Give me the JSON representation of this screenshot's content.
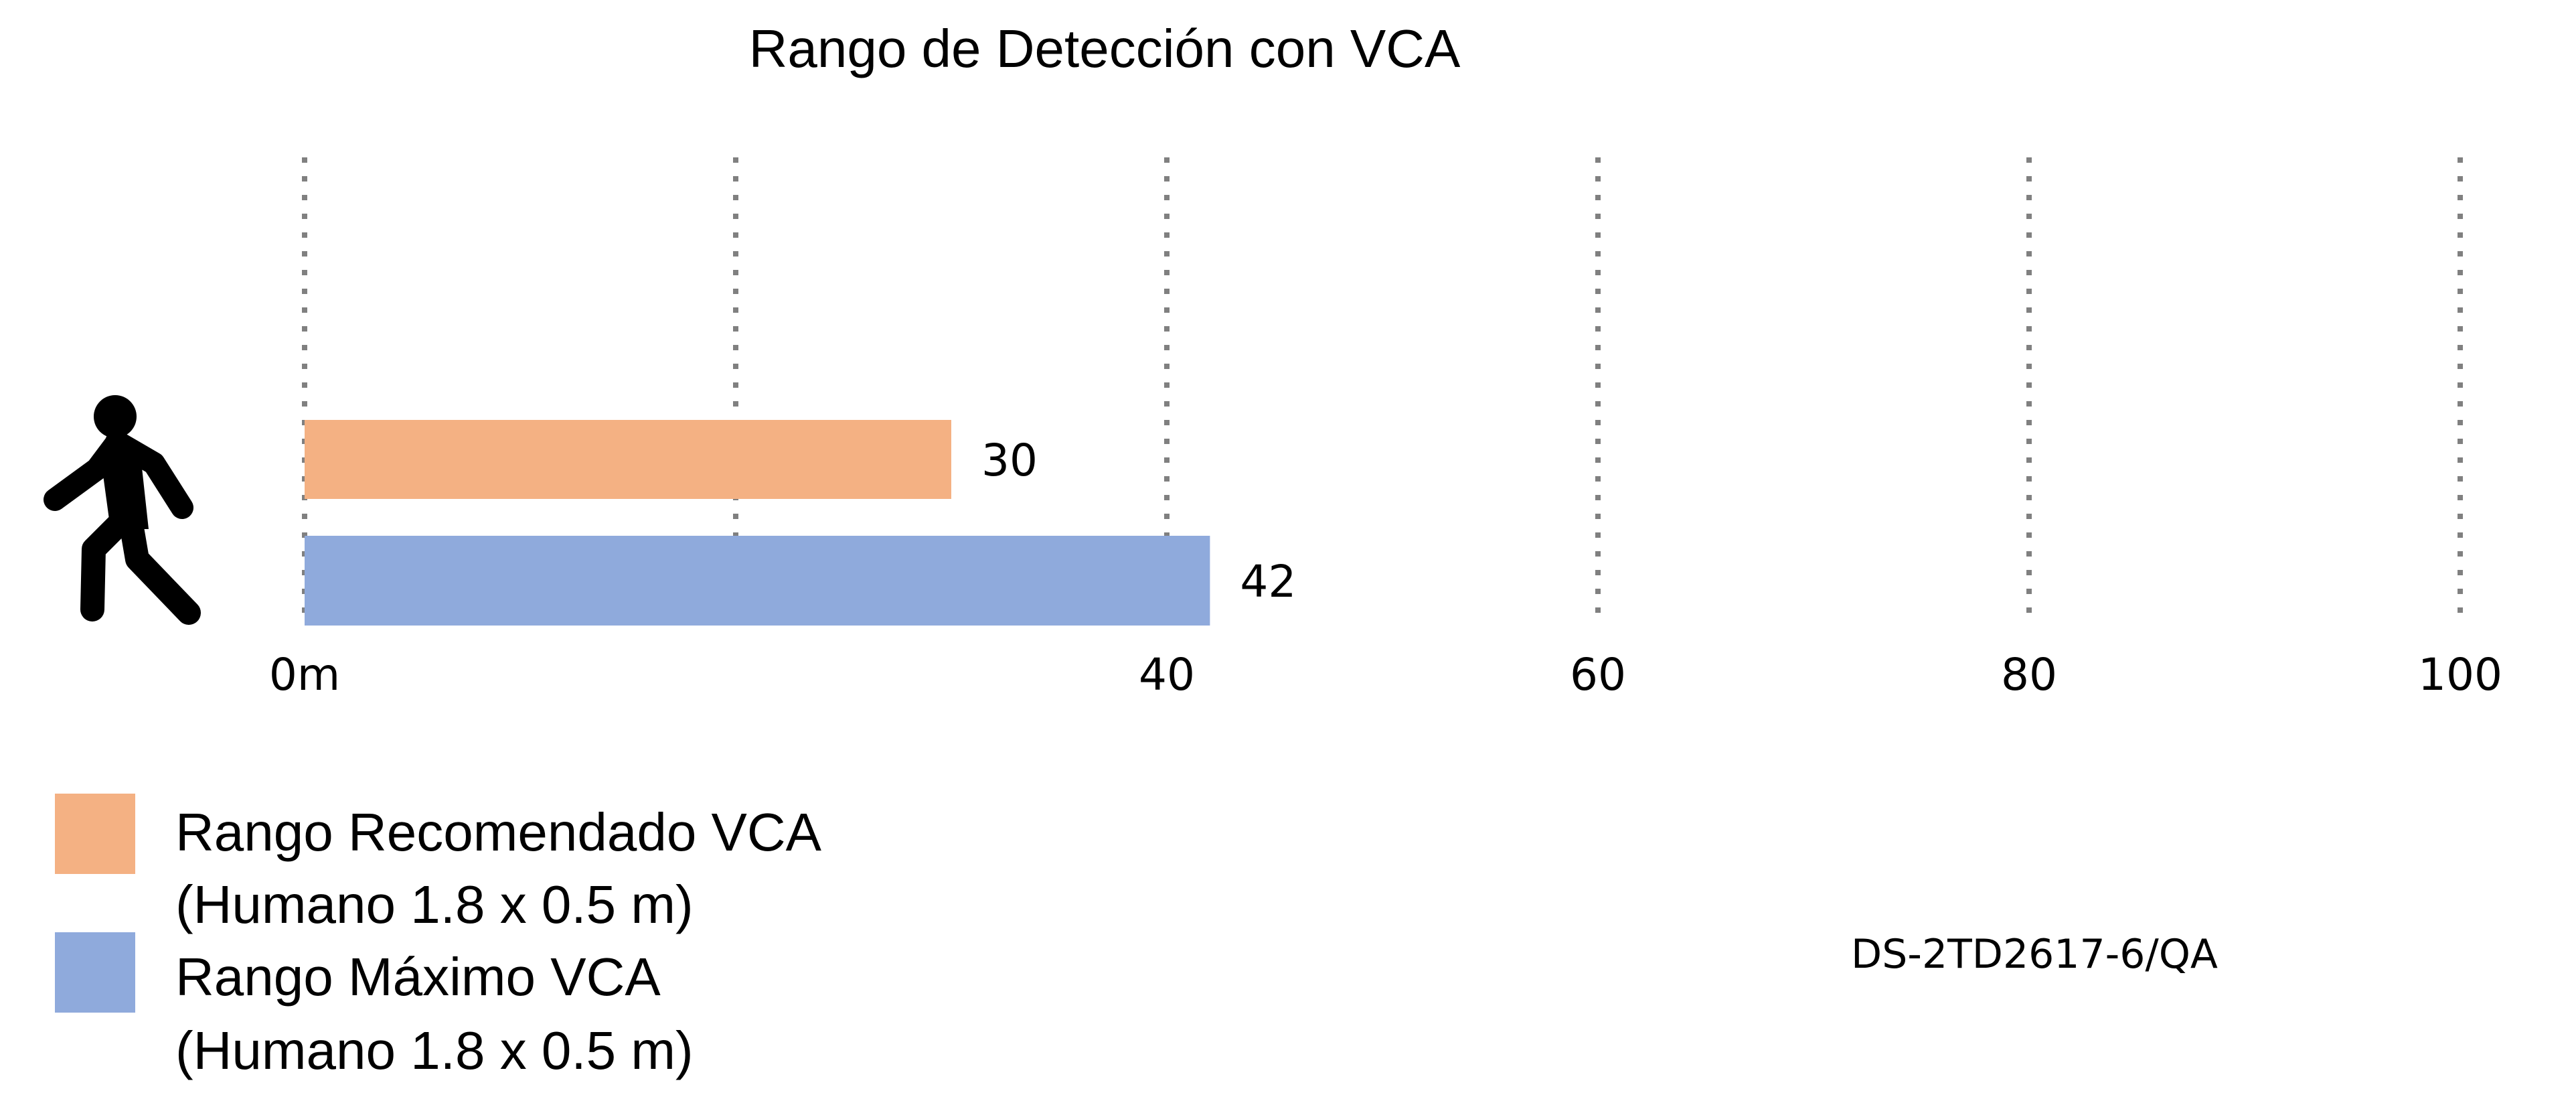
{
  "chart_data": {
    "type": "bar",
    "orientation": "horizontal",
    "title": "Rango de Detección con VCA",
    "xlim": [
      0,
      100
    ],
    "grid": true,
    "ticks": [
      {
        "value": 0,
        "label": "0m"
      },
      {
        "value": 20,
        "label": ""
      },
      {
        "value": 40,
        "label": "40"
      },
      {
        "value": 60,
        "label": "60"
      },
      {
        "value": 80,
        "label": "80"
      },
      {
        "value": 100,
        "label": "100"
      }
    ],
    "series": [
      {
        "name": "Rango Recomendado VCA (Humano 1.8 x 0.5 m)",
        "value": 30,
        "label": "30",
        "color": "#F4B183"
      },
      {
        "name": "Rango Máximo VCA (Humano 1.8 x 0.5 m)",
        "value": 42,
        "label": "42",
        "color": "#8FAADC"
      }
    ],
    "legend": {
      "placement": "bottom-left",
      "items": [
        {
          "line1": "Rango Recomendado VCA",
          "line2": "(Humano 1.8 x 0.5 m)",
          "color": "#F4B183"
        },
        {
          "line1": "Rango Máximo VCA",
          "line2": "(Humano 1.8 x 0.5 m)",
          "color": "#8FAADC"
        }
      ]
    },
    "annotation": "DS-2TD2617-6/QA",
    "icon": "walking-person-icon",
    "grid_color": "#808080"
  }
}
